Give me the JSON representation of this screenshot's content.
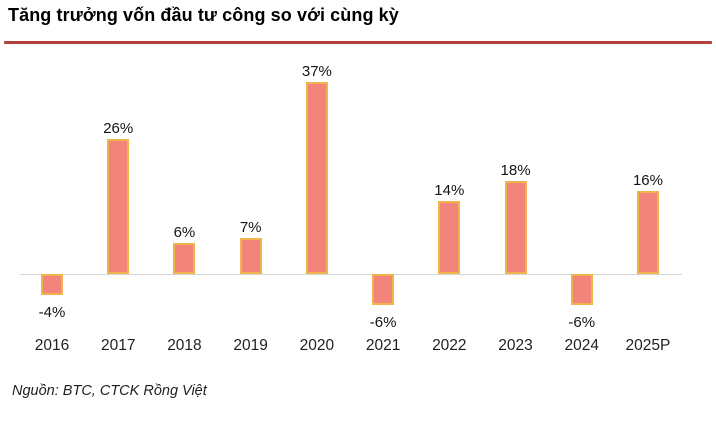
{
  "title": "Tăng trưởng vốn đầu tư công so với cùng kỳ",
  "source": "Nguồn: BTC, CTCK Rồng Việt",
  "colors": {
    "bar_fill": "#F2847B",
    "bar_border": "#F1B44C",
    "title_rule": "#B2403A",
    "axis_line": "#D5D5D5",
    "text": "#141414"
  },
  "chart_data": {
    "type": "bar",
    "title": "Tăng trưởng vốn đầu tư công so với cùng kỳ",
    "categories": [
      "2016",
      "2017",
      "2018",
      "2019",
      "2020",
      "2021",
      "2022",
      "2023",
      "2024",
      "2025P"
    ],
    "values": [
      -4,
      26,
      6,
      7,
      37,
      -6,
      14,
      18,
      -6,
      16
    ],
    "labels": [
      "-4%",
      "26%",
      "6%",
      "7%",
      "37%",
      "-6%",
      "14%",
      "18%",
      "-6%",
      "16%"
    ],
    "unit": "%",
    "xlabel": "",
    "ylabel": "",
    "ylim": [
      -10,
      40
    ],
    "grid": false,
    "legend": false,
    "baseline": 0
  }
}
